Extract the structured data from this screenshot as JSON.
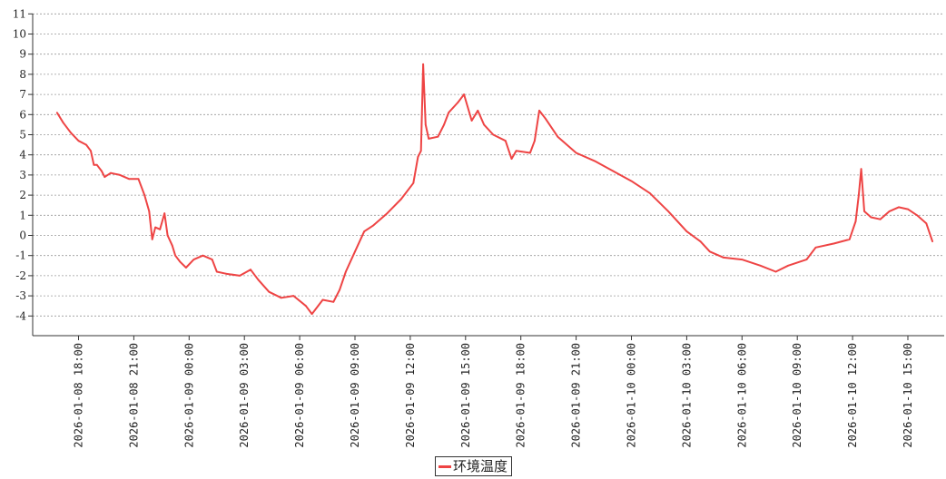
{
  "chart_data": {
    "type": "line",
    "title": "",
    "xlabel": "",
    "ylabel": "",
    "ylim": [
      -5,
      11
    ],
    "yticks": [
      -4,
      -3,
      -2,
      -1,
      0,
      1,
      2,
      3,
      4,
      5,
      6,
      7,
      8,
      9,
      10,
      11
    ],
    "grid": true,
    "legend_position": "bottom",
    "xticks": [
      "2026-01-08 18:00",
      "2026-01-08 21:00",
      "2026-01-09 00:00",
      "2026-01-09 03:00",
      "2026-01-09 06:00",
      "2026-01-09 09:00",
      "2026-01-09 12:00",
      "2026-01-09 15:00",
      "2026-01-09 18:00",
      "2026-01-09 21:00",
      "2026-01-10 00:00",
      "2026-01-10 03:00",
      "2026-01-10 06:00",
      "2026-01-10 09:00",
      "2026-01-10 12:00",
      "2026-01-10 15:00"
    ],
    "series": [
      {
        "name": "环境温度",
        "color": "#ee4444",
        "points": [
          [
            "2026-01-08 16:50",
            6.1
          ],
          [
            "2026-01-08 17:10",
            5.6
          ],
          [
            "2026-01-08 17:35",
            5.1
          ],
          [
            "2026-01-08 18:00",
            4.7
          ],
          [
            "2026-01-08 18:25",
            4.5
          ],
          [
            "2026-01-08 18:40",
            4.2
          ],
          [
            "2026-01-08 18:50",
            3.5
          ],
          [
            "2026-01-08 19:00",
            3.5
          ],
          [
            "2026-01-08 19:15",
            3.2
          ],
          [
            "2026-01-08 19:25",
            2.9
          ],
          [
            "2026-01-08 19:45",
            3.1
          ],
          [
            "2026-01-08 20:15",
            3.0
          ],
          [
            "2026-01-08 20:45",
            2.8
          ],
          [
            "2026-01-08 21:15",
            2.8
          ],
          [
            "2026-01-08 21:35",
            2.0
          ],
          [
            "2026-01-08 21:50",
            1.2
          ],
          [
            "2026-01-08 22:00",
            -0.2
          ],
          [
            "2026-01-08 22:10",
            0.4
          ],
          [
            "2026-01-08 22:25",
            0.3
          ],
          [
            "2026-01-08 22:40",
            1.1
          ],
          [
            "2026-01-08 22:50",
            0.0
          ],
          [
            "2026-01-08 23:05",
            -0.5
          ],
          [
            "2026-01-08 23:15",
            -1.0
          ],
          [
            "2026-01-08 23:30",
            -1.3
          ],
          [
            "2026-01-08 23:50",
            -1.6
          ],
          [
            "2026-01-09 00:15",
            -1.2
          ],
          [
            "2026-01-09 00:45",
            -1.0
          ],
          [
            "2026-01-09 01:15",
            -1.2
          ],
          [
            "2026-01-09 01:30",
            -1.8
          ],
          [
            "2026-01-09 02:00",
            -1.9
          ],
          [
            "2026-01-09 02:45",
            -2.0
          ],
          [
            "2026-01-09 03:20",
            -1.7
          ],
          [
            "2026-01-09 03:45",
            -2.2
          ],
          [
            "2026-01-09 04:20",
            -2.8
          ],
          [
            "2026-01-09 05:00",
            -3.1
          ],
          [
            "2026-01-09 05:40",
            -3.0
          ],
          [
            "2026-01-09 06:20",
            -3.5
          ],
          [
            "2026-01-09 06:40",
            -3.9
          ],
          [
            "2026-01-09 07:15",
            -3.2
          ],
          [
            "2026-01-09 07:50",
            -3.3
          ],
          [
            "2026-01-09 08:10",
            -2.7
          ],
          [
            "2026-01-09 08:30",
            -1.8
          ],
          [
            "2026-01-09 09:00",
            -0.8
          ],
          [
            "2026-01-09 09:30",
            0.2
          ],
          [
            "2026-01-09 10:00",
            0.5
          ],
          [
            "2026-01-09 10:45",
            1.1
          ],
          [
            "2026-01-09 11:30",
            1.8
          ],
          [
            "2026-01-09 12:10",
            2.6
          ],
          [
            "2026-01-09 12:25",
            3.9
          ],
          [
            "2026-01-09 12:35",
            4.2
          ],
          [
            "2026-01-09 12:42",
            8.5
          ],
          [
            "2026-01-09 12:50",
            5.5
          ],
          [
            "2026-01-09 13:00",
            4.8
          ],
          [
            "2026-01-09 13:30",
            4.9
          ],
          [
            "2026-01-09 13:50",
            5.5
          ],
          [
            "2026-01-09 14:05",
            6.1
          ],
          [
            "2026-01-09 14:35",
            6.6
          ],
          [
            "2026-01-09 14:55",
            7.0
          ],
          [
            "2026-01-09 15:20",
            5.7
          ],
          [
            "2026-01-09 15:40",
            6.2
          ],
          [
            "2026-01-09 16:00",
            5.5
          ],
          [
            "2026-01-09 16:30",
            5.0
          ],
          [
            "2026-01-09 17:10",
            4.7
          ],
          [
            "2026-01-09 17:30",
            3.8
          ],
          [
            "2026-01-09 17:45",
            4.2
          ],
          [
            "2026-01-09 18:30",
            4.1
          ],
          [
            "2026-01-09 18:45",
            4.7
          ],
          [
            "2026-01-09 19:00",
            6.2
          ],
          [
            "2026-01-09 19:20",
            5.8
          ],
          [
            "2026-01-09 20:00",
            4.9
          ],
          [
            "2026-01-09 21:00",
            4.1
          ],
          [
            "2026-01-09 22:00",
            3.7
          ],
          [
            "2026-01-09 23:00",
            3.2
          ],
          [
            "2026-01-10 00:00",
            2.7
          ],
          [
            "2026-01-10 01:00",
            2.1
          ],
          [
            "2026-01-10 02:00",
            1.2
          ],
          [
            "2026-01-10 03:00",
            0.2
          ],
          [
            "2026-01-10 03:45",
            -0.3
          ],
          [
            "2026-01-10 04:15",
            -0.8
          ],
          [
            "2026-01-10 05:00",
            -1.1
          ],
          [
            "2026-01-10 06:00",
            -1.2
          ],
          [
            "2026-01-10 07:00",
            -1.5
          ],
          [
            "2026-01-10 07:50",
            -1.8
          ],
          [
            "2026-01-10 08:30",
            -1.5
          ],
          [
            "2026-01-10 09:30",
            -1.2
          ],
          [
            "2026-01-10 10:00",
            -0.6
          ],
          [
            "2026-01-10 11:00",
            -0.4
          ],
          [
            "2026-01-10 11:50",
            -0.2
          ],
          [
            "2026-01-10 12:10",
            0.7
          ],
          [
            "2026-01-10 12:20",
            2.0
          ],
          [
            "2026-01-10 12:28",
            3.3
          ],
          [
            "2026-01-10 12:38",
            1.2
          ],
          [
            "2026-01-10 13:00",
            0.9
          ],
          [
            "2026-01-10 13:30",
            0.8
          ],
          [
            "2026-01-10 14:00",
            1.2
          ],
          [
            "2026-01-10 14:30",
            1.4
          ],
          [
            "2026-01-10 15:00",
            1.3
          ],
          [
            "2026-01-10 15:30",
            1.0
          ],
          [
            "2026-01-10 16:00",
            0.6
          ],
          [
            "2026-01-10 16:20",
            -0.3
          ]
        ]
      }
    ]
  }
}
